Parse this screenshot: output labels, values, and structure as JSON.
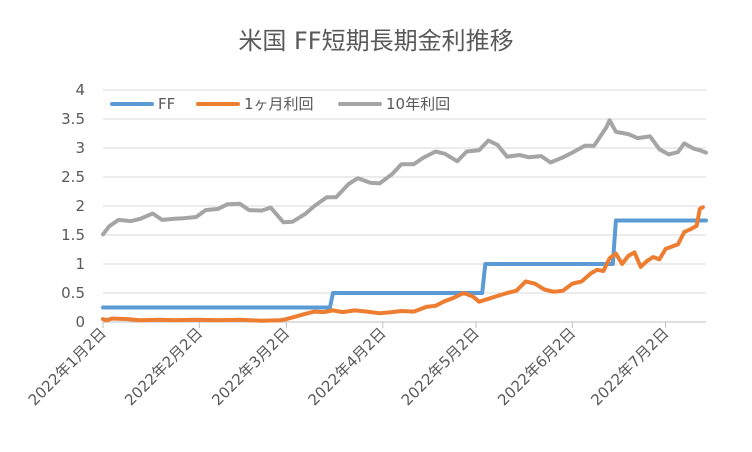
{
  "chart_data": {
    "type": "line",
    "title": "米国 FF短期長期金利推移",
    "xlabel": "",
    "ylabel": "",
    "ylim": [
      0,
      4
    ],
    "yticks": [
      "0",
      "0.5",
      "1",
      "1.5",
      "2",
      "2.5",
      "3",
      "3.5",
      "4"
    ],
    "xlim": [
      "2022-01-02",
      "2022-07-15"
    ],
    "xticks": [
      {
        "date": "2022-01-02",
        "label": "2022年1月2日"
      },
      {
        "date": "2022-02-02",
        "label": "2022年2月2日"
      },
      {
        "date": "2022-03-02",
        "label": "2022年3月2日"
      },
      {
        "date": "2022-04-02",
        "label": "2022年4月2日"
      },
      {
        "date": "2022-05-02",
        "label": "2022年5月2日"
      },
      {
        "date": "2022-06-02",
        "label": "2022年6月2日"
      },
      {
        "date": "2022-07-02",
        "label": "2022年7月2日"
      }
    ],
    "grid": true,
    "legend_position": "top",
    "series": [
      {
        "name": "FF",
        "color": "#5b9bd5",
        "points": [
          [
            "2022-01-02",
            0.25
          ],
          [
            "2022-03-16",
            0.25
          ],
          [
            "2022-03-17",
            0.5
          ],
          [
            "2022-05-04",
            0.5
          ],
          [
            "2022-05-05",
            1.0
          ],
          [
            "2022-06-15",
            1.0
          ],
          [
            "2022-06-16",
            1.75
          ],
          [
            "2022-07-15",
            1.75
          ]
        ]
      },
      {
        "name": "1ヶ月利回",
        "color": "#ed7d31",
        "points": [
          [
            "2022-01-02",
            0.05
          ],
          [
            "2022-01-03",
            0.03
          ],
          [
            "2022-01-05",
            0.06
          ],
          [
            "2022-01-10",
            0.05
          ],
          [
            "2022-01-14",
            0.03
          ],
          [
            "2022-01-20",
            0.04
          ],
          [
            "2022-01-25",
            0.03
          ],
          [
            "2022-02-01",
            0.04
          ],
          [
            "2022-02-08",
            0.03
          ],
          [
            "2022-02-15",
            0.04
          ],
          [
            "2022-02-22",
            0.02
          ],
          [
            "2022-02-28",
            0.03
          ],
          [
            "2022-03-02",
            0.05
          ],
          [
            "2022-03-04",
            0.08
          ],
          [
            "2022-03-08",
            0.14
          ],
          [
            "2022-03-11",
            0.18
          ],
          [
            "2022-03-14",
            0.17
          ],
          [
            "2022-03-17",
            0.2
          ],
          [
            "2022-03-20",
            0.17
          ],
          [
            "2022-03-24",
            0.2
          ],
          [
            "2022-03-28",
            0.18
          ],
          [
            "2022-04-01",
            0.15
          ],
          [
            "2022-04-05",
            0.17
          ],
          [
            "2022-04-08",
            0.19
          ],
          [
            "2022-04-12",
            0.18
          ],
          [
            "2022-04-16",
            0.26
          ],
          [
            "2022-04-19",
            0.28
          ],
          [
            "2022-04-22",
            0.36
          ],
          [
            "2022-04-25",
            0.42
          ],
          [
            "2022-04-28",
            0.5
          ],
          [
            "2022-05-01",
            0.44
          ],
          [
            "2022-05-03",
            0.35
          ],
          [
            "2022-05-06",
            0.4
          ],
          [
            "2022-05-09",
            0.45
          ],
          [
            "2022-05-12",
            0.5
          ],
          [
            "2022-05-15",
            0.54
          ],
          [
            "2022-05-18",
            0.7
          ],
          [
            "2022-05-21",
            0.66
          ],
          [
            "2022-05-24",
            0.56
          ],
          [
            "2022-05-27",
            0.52
          ],
          [
            "2022-05-30",
            0.54
          ],
          [
            "2022-06-02",
            0.66
          ],
          [
            "2022-06-05",
            0.7
          ],
          [
            "2022-06-08",
            0.84
          ],
          [
            "2022-06-10",
            0.9
          ],
          [
            "2022-06-12",
            0.88
          ],
          [
            "2022-06-14",
            1.1
          ],
          [
            "2022-06-16",
            1.18
          ],
          [
            "2022-06-18",
            1.0
          ],
          [
            "2022-06-20",
            1.14
          ],
          [
            "2022-06-22",
            1.2
          ],
          [
            "2022-06-24",
            0.95
          ],
          [
            "2022-06-26",
            1.05
          ],
          [
            "2022-06-28",
            1.12
          ],
          [
            "2022-06-30",
            1.08
          ],
          [
            "2022-07-02",
            1.26
          ],
          [
            "2022-07-04",
            1.3
          ],
          [
            "2022-07-06",
            1.34
          ],
          [
            "2022-07-08",
            1.55
          ],
          [
            "2022-07-10",
            1.6
          ],
          [
            "2022-07-12",
            1.66
          ],
          [
            "2022-07-13",
            1.95
          ],
          [
            "2022-07-14",
            1.98
          ]
        ]
      },
      {
        "name": "10年利回",
        "color": "#a5a5a5",
        "points": [
          [
            "2022-01-02",
            1.51
          ],
          [
            "2022-01-04",
            1.65
          ],
          [
            "2022-01-07",
            1.76
          ],
          [
            "2022-01-11",
            1.74
          ],
          [
            "2022-01-14",
            1.78
          ],
          [
            "2022-01-18",
            1.87
          ],
          [
            "2022-01-21",
            1.76
          ],
          [
            "2022-01-25",
            1.78
          ],
          [
            "2022-01-28",
            1.79
          ],
          [
            "2022-02-01",
            1.81
          ],
          [
            "2022-02-04",
            1.93
          ],
          [
            "2022-02-08",
            1.95
          ],
          [
            "2022-02-11",
            2.03
          ],
          [
            "2022-02-15",
            2.04
          ],
          [
            "2022-02-18",
            1.93
          ],
          [
            "2022-02-22",
            1.92
          ],
          [
            "2022-02-25",
            1.97
          ],
          [
            "2022-03-01",
            1.72
          ],
          [
            "2022-03-04",
            1.73
          ],
          [
            "2022-03-08",
            1.86
          ],
          [
            "2022-03-11",
            2.0
          ],
          [
            "2022-03-15",
            2.15
          ],
          [
            "2022-03-18",
            2.15
          ],
          [
            "2022-03-22",
            2.38
          ],
          [
            "2022-03-25",
            2.48
          ],
          [
            "2022-03-29",
            2.4
          ],
          [
            "2022-04-01",
            2.39
          ],
          [
            "2022-04-05",
            2.55
          ],
          [
            "2022-04-08",
            2.72
          ],
          [
            "2022-04-12",
            2.72
          ],
          [
            "2022-04-15",
            2.83
          ],
          [
            "2022-04-19",
            2.94
          ],
          [
            "2022-04-22",
            2.9
          ],
          [
            "2022-04-26",
            2.77
          ],
          [
            "2022-04-29",
            2.94
          ],
          [
            "2022-05-03",
            2.96
          ],
          [
            "2022-05-06",
            3.13
          ],
          [
            "2022-05-09",
            3.05
          ],
          [
            "2022-05-12",
            2.85
          ],
          [
            "2022-05-16",
            2.88
          ],
          [
            "2022-05-19",
            2.84
          ],
          [
            "2022-05-23",
            2.86
          ],
          [
            "2022-05-26",
            2.75
          ],
          [
            "2022-05-30",
            2.84
          ],
          [
            "2022-06-02",
            2.92
          ],
          [
            "2022-06-06",
            3.04
          ],
          [
            "2022-06-09",
            3.04
          ],
          [
            "2022-06-13",
            3.36
          ],
          [
            "2022-06-14",
            3.48
          ],
          [
            "2022-06-16",
            3.28
          ],
          [
            "2022-06-20",
            3.24
          ],
          [
            "2022-06-23",
            3.17
          ],
          [
            "2022-06-27",
            3.2
          ],
          [
            "2022-06-30",
            2.98
          ],
          [
            "2022-07-03",
            2.89
          ],
          [
            "2022-07-06",
            2.93
          ],
          [
            "2022-07-08",
            3.08
          ],
          [
            "2022-07-11",
            2.99
          ],
          [
            "2022-07-13",
            2.96
          ],
          [
            "2022-07-15",
            2.92
          ]
        ]
      }
    ]
  }
}
